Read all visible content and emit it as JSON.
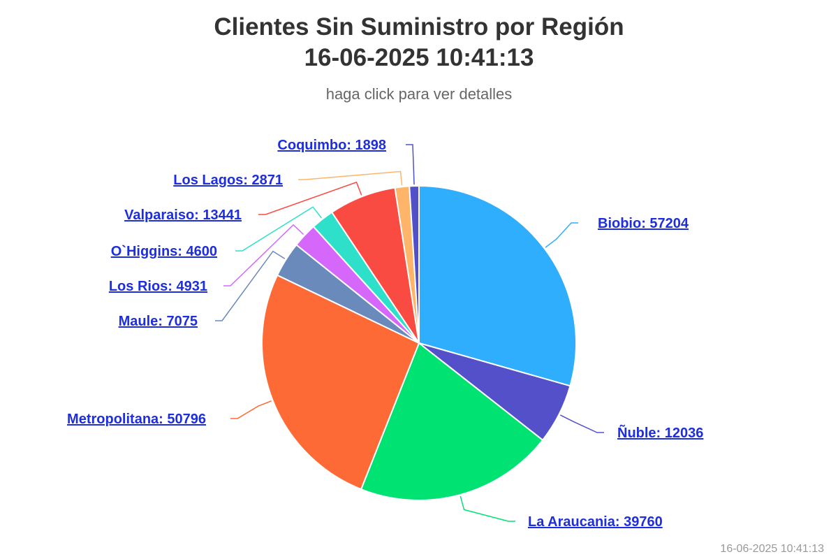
{
  "chart_data": {
    "type": "pie",
    "title": [
      "Clientes Sin Suministro por Región",
      "16-06-2025 10:41:13"
    ],
    "subtitle": "haga click para ver detalles",
    "slices": [
      {
        "name": "Biobio",
        "value": 57204,
        "color": "#2eaefd",
        "label": "Biobio: 57204"
      },
      {
        "name": "Ñuble",
        "value": 12036,
        "color": "#5350c9",
        "label": "Ñuble: 12036"
      },
      {
        "name": "La Araucania",
        "value": 39760,
        "color": "#00e272",
        "label": "La Araucania: 39760"
      },
      {
        "name": "Metropolitana",
        "value": 50796,
        "color": "#fe6a35",
        "label": "Metropolitana: 50796"
      },
      {
        "name": "Maule",
        "value": 7075,
        "color": "#6b8abc",
        "label": "Maule: 7075"
      },
      {
        "name": "Los Rios",
        "value": 4931,
        "color": "#d568fb",
        "label": "Los Rios: 4931"
      },
      {
        "name": "O`Higgins",
        "value": 4600,
        "color": "#2ee0ca",
        "label": "O`Higgins: 4600"
      },
      {
        "name": "Valparaiso",
        "value": 13441,
        "color": "#fa4b42",
        "label": "Valparaiso: 13441"
      },
      {
        "name": "Los Lagos",
        "value": 2871,
        "color": "#feb56a",
        "label": "Los Lagos: 2871"
      },
      {
        "name": "Coquimbo",
        "value": 1898,
        "color": "#5150c9",
        "label": "Coquimbo: 1898"
      }
    ]
  },
  "footer": {
    "timestamp": "16-06-2025 10:41:13"
  }
}
